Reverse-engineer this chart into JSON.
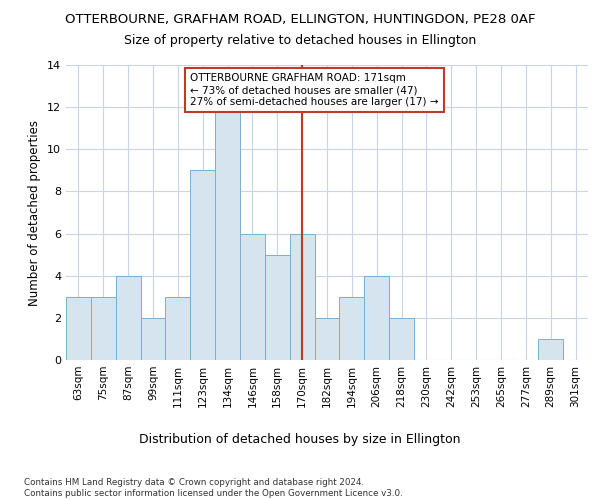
{
  "title": "OTTERBOURNE, GRAFHAM ROAD, ELLINGTON, HUNTINGDON, PE28 0AF",
  "subtitle": "Size of property relative to detached houses in Ellington",
  "xlabel_bottom": "Distribution of detached houses by size in Ellington",
  "ylabel": "Number of detached properties",
  "footnote": "Contains HM Land Registry data © Crown copyright and database right 2024.\nContains public sector information licensed under the Open Government Licence v3.0.",
  "categories": [
    "63sqm",
    "75sqm",
    "87sqm",
    "99sqm",
    "111sqm",
    "123sqm",
    "134sqm",
    "146sqm",
    "158sqm",
    "170sqm",
    "182sqm",
    "194sqm",
    "206sqm",
    "218sqm",
    "230sqm",
    "242sqm",
    "253sqm",
    "265sqm",
    "277sqm",
    "289sqm",
    "301sqm"
  ],
  "values": [
    3,
    3,
    4,
    2,
    3,
    9,
    12,
    6,
    5,
    6,
    2,
    3,
    4,
    2,
    0,
    0,
    0,
    0,
    0,
    1,
    0
  ],
  "bar_color": "#d6e4f0",
  "bar_edge_color": "#7aaed0",
  "vline_x_index": 9,
  "vline_color": "#c0392b",
  "annotation_title": "OTTERBOURNE GRAFHAM ROAD: 171sqm",
  "annotation_line1": "← 73% of detached houses are smaller (47)",
  "annotation_line2": "27% of semi-detached houses are larger (17) →",
  "annotation_box_color": "#ffffff",
  "annotation_border_color": "#c0392b",
  "ylim": [
    0,
    14
  ],
  "yticks": [
    0,
    2,
    4,
    6,
    8,
    10,
    12,
    14
  ],
  "bg_color": "#ffffff",
  "plot_bg_color": "#ffffff",
  "grid_color": "#c8d4e8",
  "title_fontsize": 9.5,
  "subtitle_fontsize": 9,
  "ylabel_fontsize": 8.5,
  "tick_fontsize": 7.5,
  "xlabel_fontsize": 9
}
